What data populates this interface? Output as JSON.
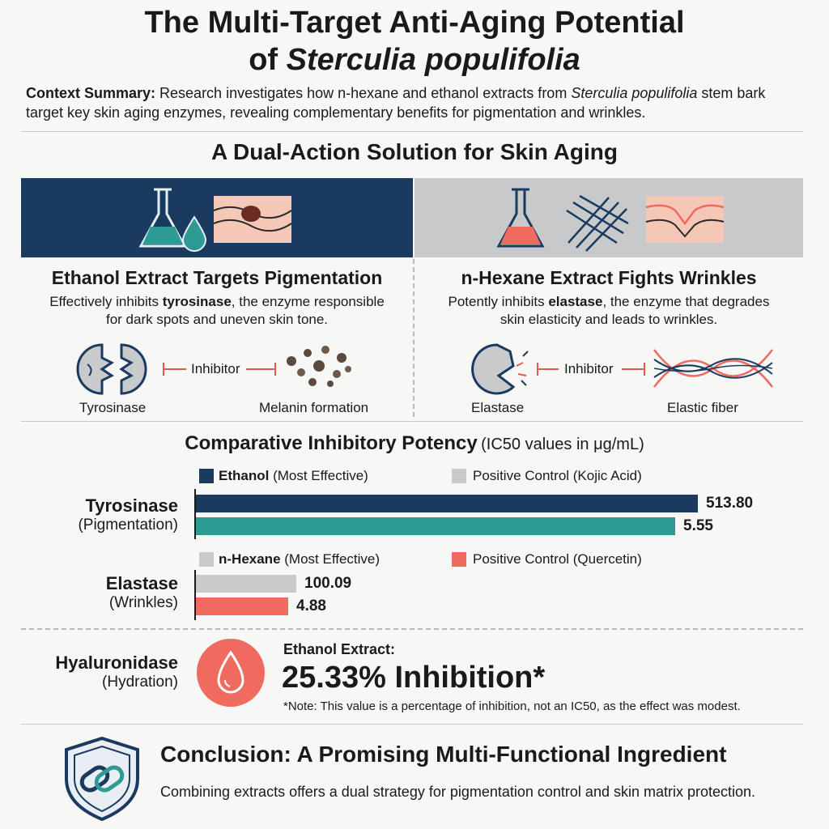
{
  "title": {
    "line1": "The Multi-Target Anti-Aging Potential",
    "line2_prefix": "of ",
    "line2_species": "Sterculia populifolia"
  },
  "context": {
    "label": "Context Summary:",
    "text_a": " Research investigates how n-hexane and ethanol extracts from ",
    "species": "Sterculia populifolia",
    "text_b": " stem bark target key skin aging enzymes, revealing complementary benefits for pigmentation and wrinkles."
  },
  "section_title": "A Dual-Action Solution for Skin Aging",
  "left_col": {
    "title": "Ethanol Extract Targets Pigmentation",
    "desc_a": "Effectively inhibits ",
    "desc_bold": "tyrosinase",
    "desc_b": ", the enzyme responsible for dark spots and uneven skin tone.",
    "enzyme_label": "Tyrosinase",
    "inhibitor_label": "Inhibitor",
    "target_label": "Melanin formation"
  },
  "right_col": {
    "title": "n-Hexane Extract Fights Wrinkles",
    "desc_a": "Potently inhibits ",
    "desc_bold": "elastase",
    "desc_b": ", the enzyme that degrades skin elasticity and leads to wrinkles.",
    "enzyme_label": "Elastase",
    "inhibitor_label": "Inhibitor",
    "target_label": "Elastic fiber"
  },
  "chart_title": {
    "main": "Comparative Inhibitory Potency",
    "unit": "(IC50 values in μg/mL)"
  },
  "chart_data": {
    "type": "bar",
    "orientation": "horizontal",
    "groups": [
      {
        "label": "Tyrosinase",
        "sublabel": "(Pigmentation)",
        "legend": [
          {
            "bold": "Ethanol",
            "text": " (Most Effective)",
            "color": "#1b3a5f"
          },
          {
            "bold": "",
            "text": "Positive Control (Kojic Acid)",
            "color": "#c9cacc"
          }
        ],
        "bars": [
          {
            "value": 513.8,
            "display": "513.80",
            "color": "#1b3a5f"
          },
          {
            "value": 5.55,
            "display": "5.55",
            "color": "#2e9a94"
          }
        ]
      },
      {
        "label": "Elastase",
        "sublabel": "(Wrinkles)",
        "legend": [
          {
            "bold": "n-Hexane",
            "text": " (Most Effective)",
            "color": "#c9cacc"
          },
          {
            "bold": "",
            "text": "Positive Control (Quercetin)",
            "color": "#f06b5f"
          }
        ],
        "bars": [
          {
            "value": 100.09,
            "display": "100.09",
            "color": "#c9cacc"
          },
          {
            "value": 4.88,
            "display": "4.88",
            "color": "#f06b5f"
          }
        ]
      }
    ]
  },
  "hyaluronidase": {
    "label": "Hyaluronidase",
    "sublabel": "(Hydration)",
    "extract_label": "Ethanol Extract:",
    "value_text": "25.33% Inhibition*",
    "note": "*Note: This value is a percentage of inhibition, not an IC50, as the effect was modest."
  },
  "conclusion": {
    "title": "Conclusion: A Promising Multi-Functional Ingredient",
    "text": "Combining extracts offers a dual strategy for pigmentation control and skin matrix protection."
  },
  "colors": {
    "navy": "#1b3a5f",
    "teal": "#2e9a94",
    "coral": "#f06b5f",
    "grey": "#c9cacc"
  }
}
